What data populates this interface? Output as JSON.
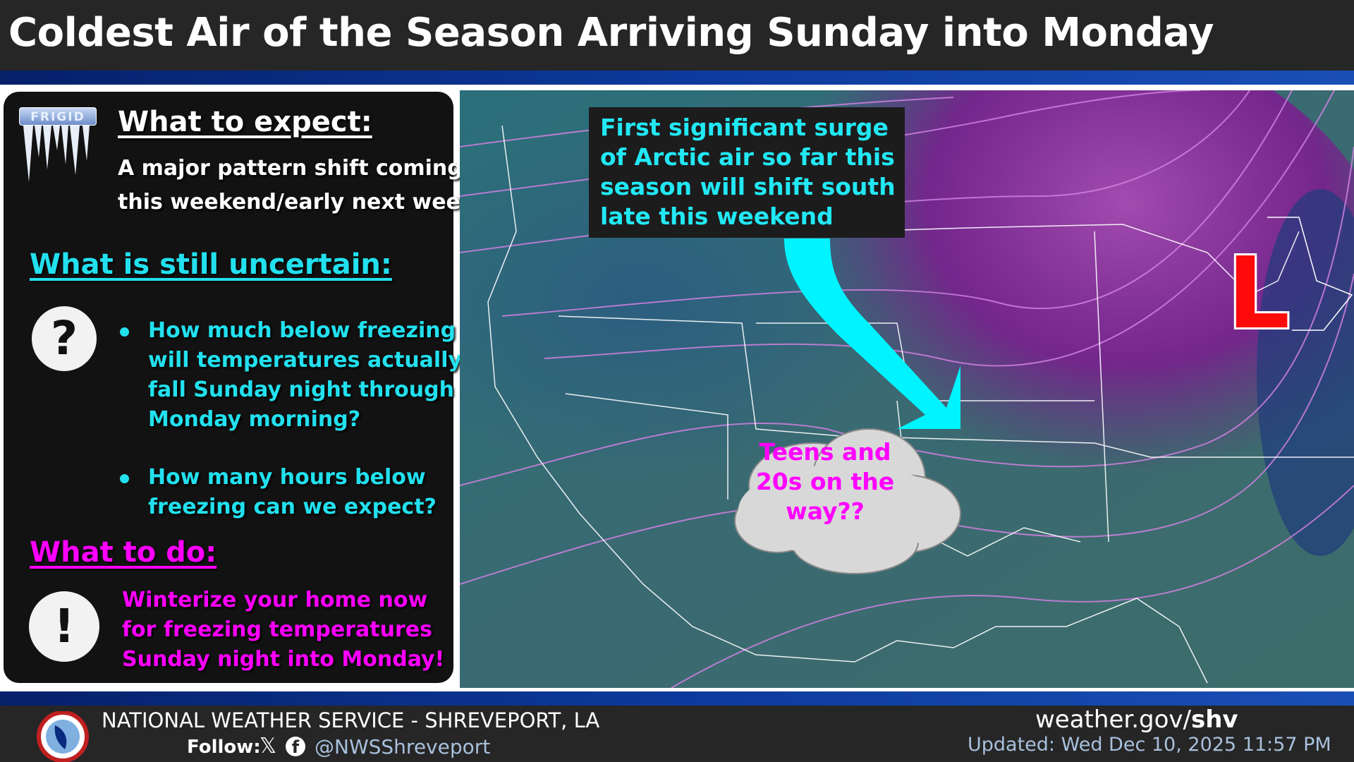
{
  "header": {
    "title": "Coldest Air of the Season Arriving Sunday into Monday"
  },
  "panel": {
    "logo_text": "FRIGID",
    "expect": {
      "heading": "What to expect:",
      "lines": [
        "A major pattern shift coming",
        "this weekend/early next week"
      ]
    },
    "uncertain": {
      "heading": "What is still uncertain:",
      "icon": "question-mark-icon",
      "bullets": [
        {
          "lines": [
            "How much below freezing",
            "will temperatures actually",
            "fall Sunday night through",
            "Monday morning?"
          ]
        },
        {
          "lines": [
            "How many hours below",
            "freezing can we expect?"
          ]
        }
      ]
    },
    "todo": {
      "heading": "What to do:",
      "icon": "exclamation-icon",
      "lines": [
        "Winterize your home now",
        "for freezing temperatures",
        "Sunday night into Monday!"
      ]
    }
  },
  "map": {
    "callout": [
      "First significant surge",
      "of Arctic air so far this",
      "season will shift south",
      "late this weekend"
    ],
    "cloud": [
      "Teens and",
      "20s on the",
      "way??"
    ],
    "low_label": "L"
  },
  "footer": {
    "office": "NATIONAL WEATHER SERVICE - SHREVEPORT, LA",
    "follow_label": "Follow:",
    "handle": "@NWSShreveport",
    "site_prefix": "weather.gov/",
    "site_suffix": "shv",
    "updated": "Updated: Wed Dec 10, 2025 11:57 PM"
  },
  "colors": {
    "cyan": "#22e0ee",
    "magenta": "#ff00ff",
    "low": "#ff0a0a",
    "title_bar": "#262626"
  }
}
